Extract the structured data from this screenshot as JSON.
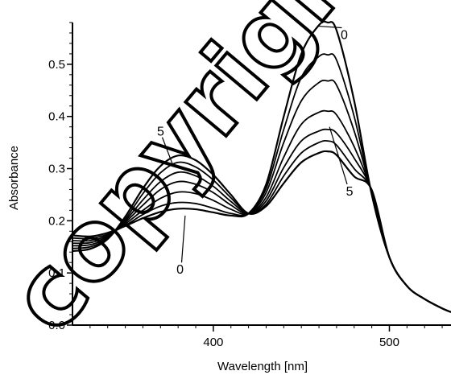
{
  "chart_data": {
    "type": "line",
    "xlabel": "Wavelength [nm]",
    "ylabel": "Absorbance",
    "xlim": [
      320,
      535
    ],
    "ylim": [
      0.0,
      0.58
    ],
    "x_ticks": [
      400,
      500
    ],
    "y_ticks": [
      0.0,
      0.1,
      0.2,
      0.3,
      0.4,
      0.5
    ],
    "y_tick_labels": [
      "0.0",
      "0.1",
      "0.2",
      "0.3",
      "0.4",
      "0.5"
    ],
    "x": [
      320,
      330,
      340,
      350,
      360,
      370,
      380,
      390,
      400,
      410,
      420,
      430,
      440,
      450,
      460,
      465,
      470,
      480,
      490,
      500,
      510,
      520,
      530,
      535
    ],
    "series": [
      {
        "values": [
          0.172,
          0.17,
          0.177,
          0.19,
          0.205,
          0.217,
          0.223,
          0.222,
          0.216,
          0.21,
          0.214,
          0.27,
          0.4,
          0.52,
          0.575,
          0.58,
          0.565,
          0.43,
          0.25,
          0.13,
          0.075,
          0.05,
          0.032,
          0.025
        ]
      },
      {
        "values": [
          0.167,
          0.166,
          0.174,
          0.191,
          0.212,
          0.228,
          0.235,
          0.233,
          0.224,
          0.214,
          0.214,
          0.262,
          0.375,
          0.475,
          0.515,
          0.518,
          0.508,
          0.4,
          0.252,
          0.13,
          0.075,
          0.05,
          0.032,
          0.025
        ]
      },
      {
        "values": [
          0.162,
          0.162,
          0.172,
          0.194,
          0.22,
          0.243,
          0.255,
          0.252,
          0.239,
          0.222,
          0.214,
          0.254,
          0.35,
          0.43,
          0.465,
          0.468,
          0.46,
          0.372,
          0.254,
          0.13,
          0.075,
          0.05,
          0.032,
          0.025
        ]
      },
      {
        "values": [
          0.157,
          0.158,
          0.17,
          0.197,
          0.23,
          0.26,
          0.275,
          0.27,
          0.254,
          0.23,
          0.214,
          0.245,
          0.322,
          0.385,
          0.408,
          0.41,
          0.403,
          0.342,
          0.256,
          0.13,
          0.075,
          0.05,
          0.032,
          0.025
        ]
      },
      {
        "values": [
          0.152,
          0.154,
          0.168,
          0.2,
          0.24,
          0.275,
          0.293,
          0.286,
          0.266,
          0.237,
          0.214,
          0.238,
          0.302,
          0.353,
          0.372,
          0.375,
          0.368,
          0.32,
          0.257,
          0.13,
          0.075,
          0.05,
          0.032,
          0.025
        ]
      },
      {
        "values": [
          0.147,
          0.15,
          0.166,
          0.203,
          0.252,
          0.292,
          0.312,
          0.303,
          0.278,
          0.244,
          0.214,
          0.232,
          0.286,
          0.33,
          0.35,
          0.353,
          0.345,
          0.3,
          0.258,
          0.13,
          0.075,
          0.05,
          0.032,
          0.025
        ]
      },
      {
        "values": [
          0.142,
          0.146,
          0.165,
          0.208,
          0.262,
          0.305,
          0.325,
          0.316,
          0.288,
          0.25,
          0.214,
          0.228,
          0.272,
          0.312,
          0.33,
          0.333,
          0.326,
          0.285,
          0.259,
          0.13,
          0.075,
          0.05,
          0.032,
          0.025
        ]
      }
    ],
    "annotations": [
      {
        "text": "0",
        "x": 473,
        "y": 0.57,
        "ax": 460,
        "ay": 0.573
      },
      {
        "text": "5",
        "x": 476,
        "y": 0.27,
        "ax": 466,
        "ay": 0.38
      },
      {
        "text": "5",
        "x": 371,
        "y": 0.36,
        "ax": 377,
        "ay": 0.307
      },
      {
        "text": "0",
        "x": 382,
        "y": 0.12,
        "ax": 384,
        "ay": 0.21
      }
    ]
  },
  "watermark": "copyrighted"
}
